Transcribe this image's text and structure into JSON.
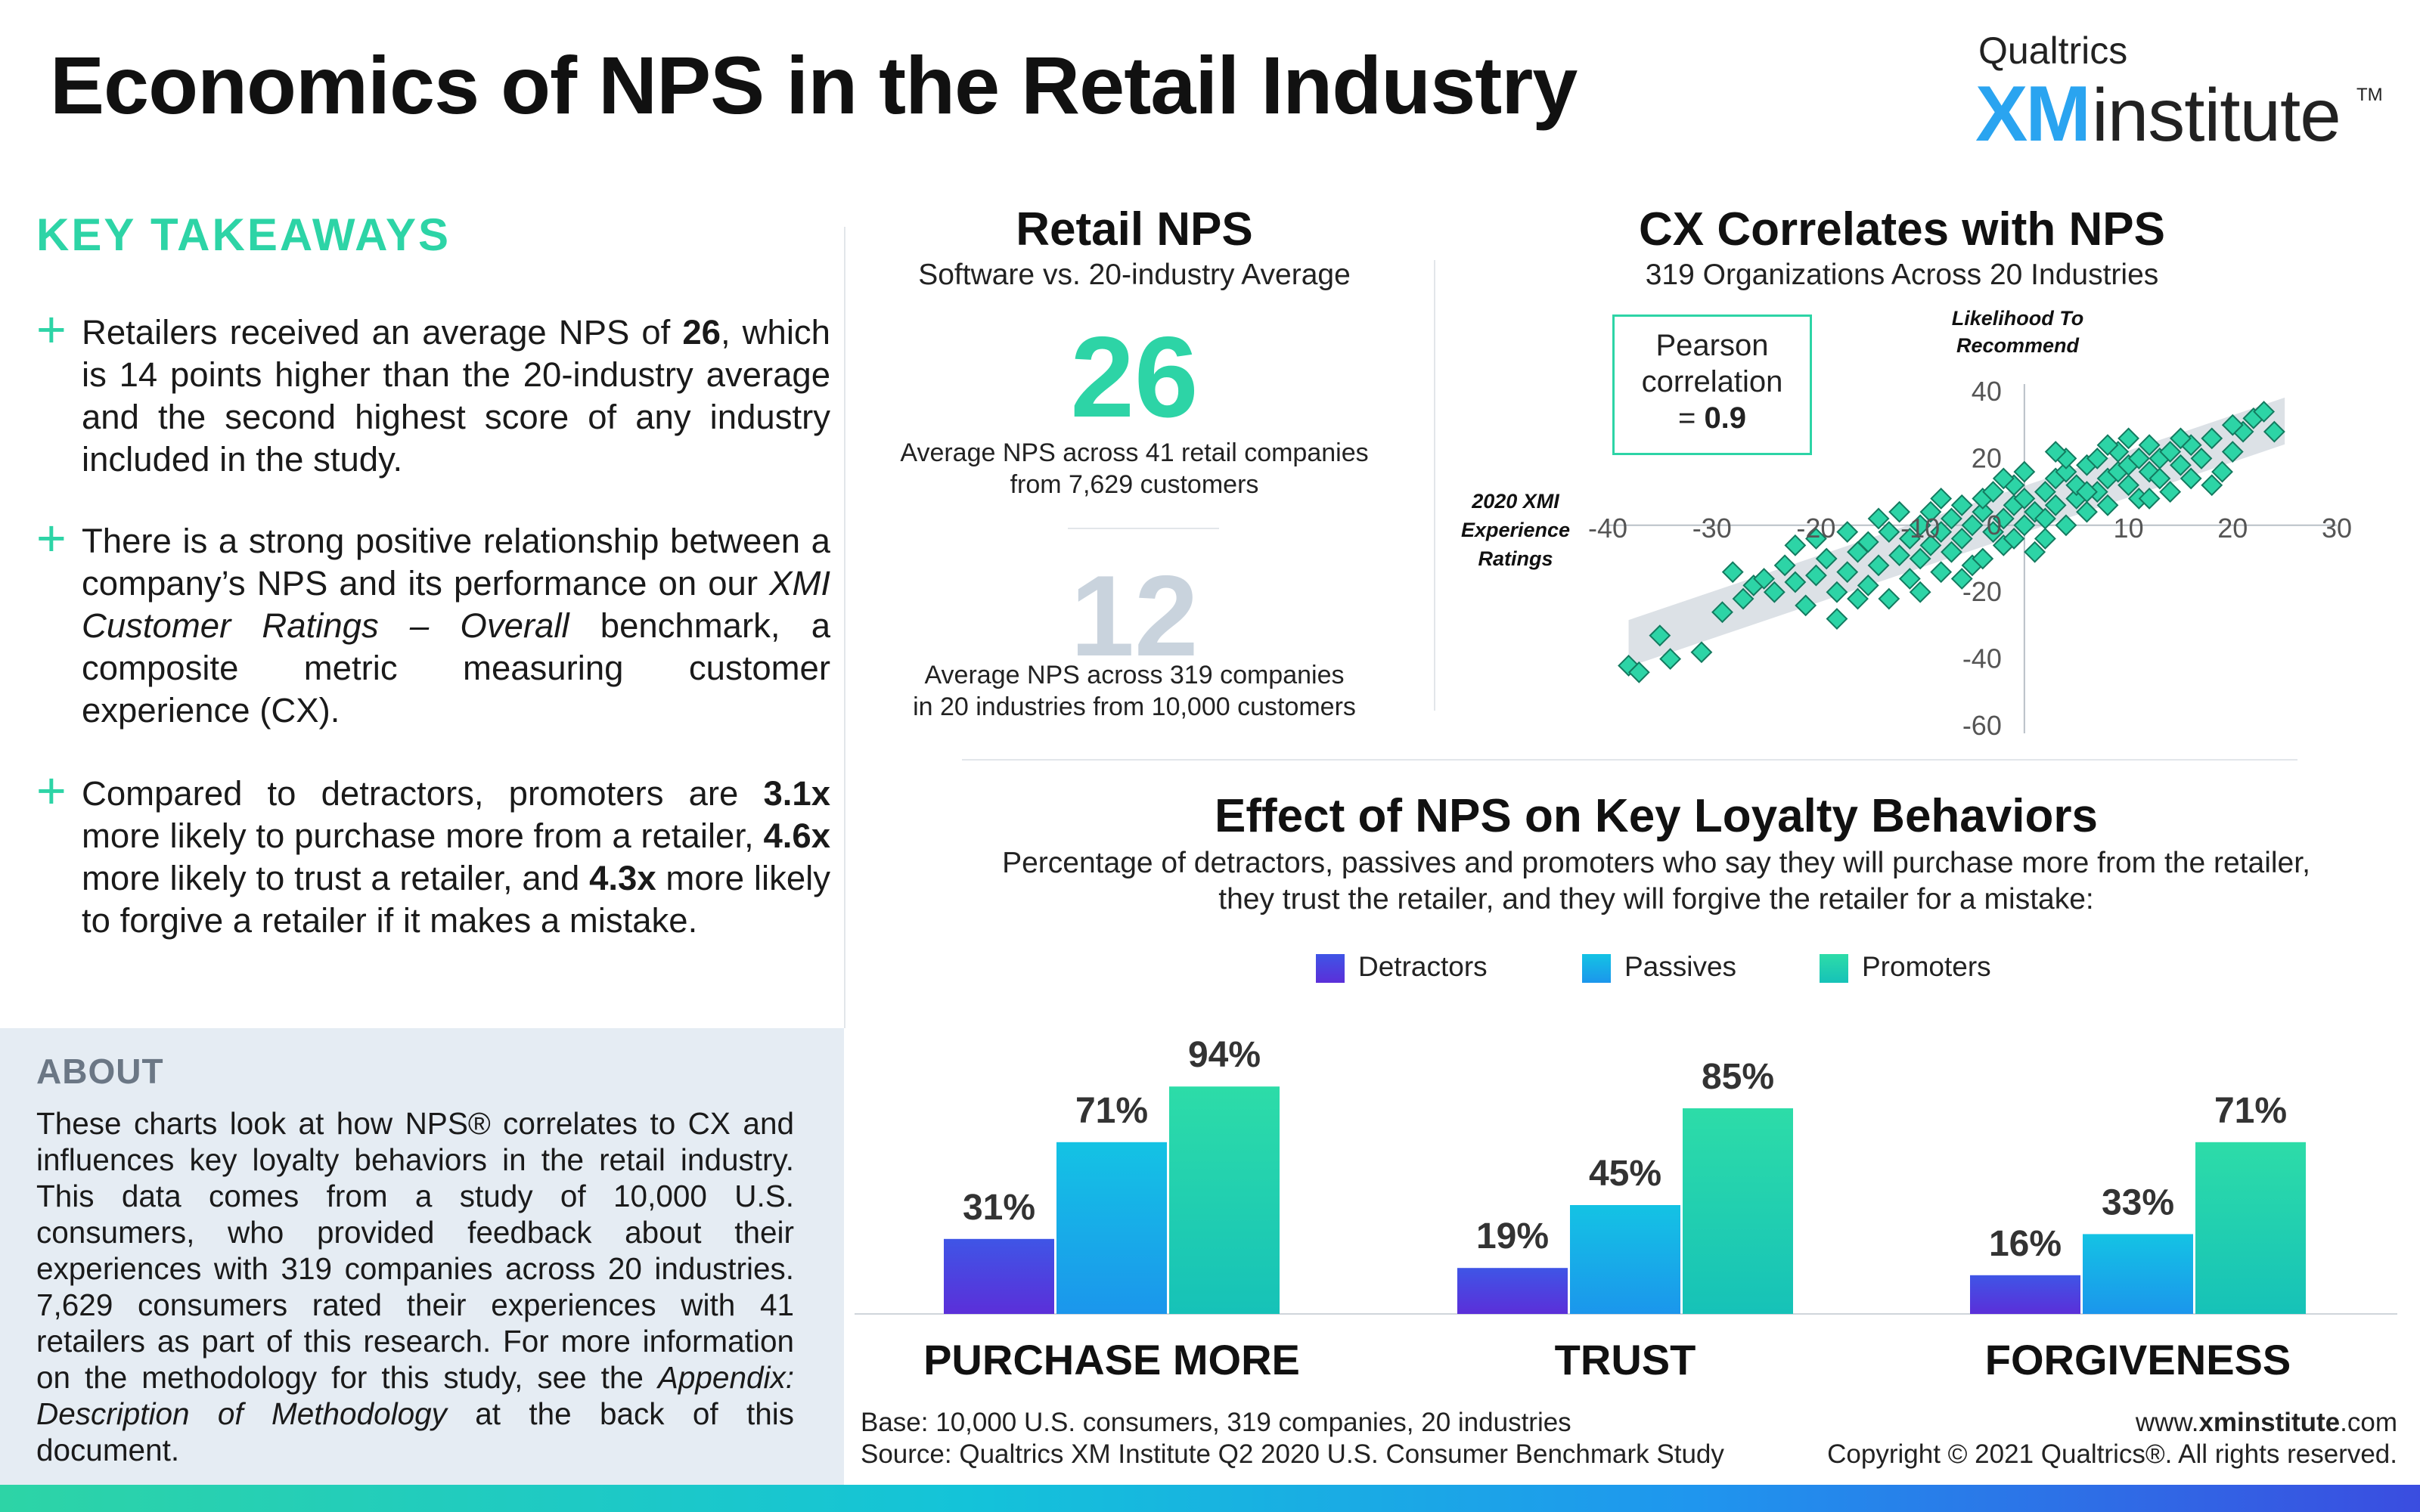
{
  "header": {
    "title": "Economics of NPS in the Retail Industry",
    "brand_company": "Qualtrics",
    "brand_xm": "XM",
    "brand_institute": "institute",
    "brand_tm": "TM"
  },
  "takeaways": {
    "title": "KEY TAKEAWAYS",
    "item1": {
      "a": "Retailers received an average NPS of ",
      "b": "26",
      "c": ", which is 14 points higher than the 20-industry average and the second highest score of any industry included in the study."
    },
    "item2": {
      "a": "There is a strong positive relationship between a company’s NPS and its performance on our ",
      "b": "XMI Customer Ratings – Overall",
      "c": " benchmark, a composite metric measuring customer experience (CX)."
    },
    "item3": {
      "a": "Compared to detractors, promoters are ",
      "b": "3.1x",
      "c": " more likely to purchase more from a retailer, ",
      "d": "4.6x",
      "e": " more likely to trust a retailer, and ",
      "f": "4.3x",
      "g": " more likely to forgive a retailer if it makes a mistake."
    }
  },
  "about": {
    "title": "ABOUT",
    "text_a": "These charts look at how NPS® correlates to CX and influences key loyalty behaviors in the retail industry. This data comes from a study of 10,000 U.S. consumers, who provided feedback about their experiences with 319 companies across 20 industries. 7,629 consumers rated their experiences with 41 retailers as part of this research. For more information on the methodology for this study, see the ",
    "text_b": "Appendix: Description of Methodology",
    "text_c": " at the back of this document."
  },
  "retail_nps": {
    "title": "Retail NPS",
    "subtitle": "Software vs. 20-industry Average",
    "value": "26",
    "caption_1": "Average NPS across 41 retail companies",
    "caption_2": "from 7,629 customers",
    "industry_value": "12",
    "industry_caption_1": "Average NPS across 319 companies",
    "industry_caption_2": "in 20 industries from 10,000 customers"
  },
  "cx_chart": {
    "title": "CX Correlates with NPS",
    "subtitle": "319 Organizations Across 20 Industries",
    "pearson_line1": "Pearson",
    "pearson_line2": "correlation",
    "pearson_eq": "= ",
    "pearson_value": "0.9"
  },
  "effect": {
    "title": "Effect of NPS on Key Loyalty Behaviors",
    "subtitle": "Percentage of detractors, passives and promoters who say they will purchase more from the retailer, they trust the retailer, and they will forgive the retailer for a mistake:"
  },
  "footer": {
    "base": "Base: 10,000 U.S. consumers, 319 companies, 20 industries",
    "source": "Source: Qualtrics XM Institute Q2 2020 U.S. Consumer Benchmark Study",
    "web_a": "www.",
    "web_b": "xminstitute",
    "web_c": ".com",
    "copyright": "Copyright © 2021 Qualtrics®. All rights reserved."
  },
  "colors": {
    "accent_green": "#2dd4a6",
    "detractors": "#4b3fe0",
    "passives": "#18b4ec",
    "promoters": "#2dd4a6",
    "muted_number": "#c9d3dd"
  },
  "chart_data": [
    {
      "type": "scatter",
      "title": "CX Correlates with NPS",
      "subtitle": "319 Organizations Across 20 Industries",
      "xlabel": "2020 XMI Experience Ratings",
      "ylabel": "Likelihood To Recommend",
      "xlim": [
        -40,
        30
      ],
      "ylim": [
        -60,
        40
      ],
      "x_ticks": [
        -40,
        -30,
        -20,
        -10,
        10,
        20,
        30
      ],
      "y_ticks": [
        40,
        20,
        0,
        -20,
        -40,
        -60
      ],
      "correlation": 0.9,
      "points_note": "319 organizations",
      "points": [
        [
          -38,
          -42
        ],
        [
          -37,
          -44
        ],
        [
          -35,
          -33
        ],
        [
          -34,
          -40
        ],
        [
          -31,
          -38
        ],
        [
          -28,
          -14
        ],
        [
          -26,
          -18
        ],
        [
          -25,
          -16
        ],
        [
          -24,
          -20
        ],
        [
          -23,
          -12
        ],
        [
          -22,
          -17
        ],
        [
          -21,
          -24
        ],
        [
          -20,
          -15
        ],
        [
          -19,
          -10
        ],
        [
          -18,
          -20
        ],
        [
          -17,
          -14
        ],
        [
          -16,
          -8
        ],
        [
          -15,
          -18
        ],
        [
          -15,
          -5
        ],
        [
          -14,
          -12
        ],
        [
          -13,
          -2
        ],
        [
          -13,
          -22
        ],
        [
          -12,
          -9
        ],
        [
          -11,
          -4
        ],
        [
          -11,
          -16
        ],
        [
          -10,
          0
        ],
        [
          -10,
          -10
        ],
        [
          -9,
          -6
        ],
        [
          -9,
          4
        ],
        [
          -8,
          -2
        ],
        [
          -8,
          -14
        ],
        [
          -7,
          2
        ],
        [
          -7,
          -8
        ],
        [
          -6,
          6
        ],
        [
          -6,
          -4
        ],
        [
          -5,
          -12
        ],
        [
          -5,
          0
        ],
        [
          -4,
          4
        ],
        [
          -4,
          8
        ],
        [
          -3,
          -2
        ],
        [
          -3,
          10
        ],
        [
          -2,
          2
        ],
        [
          -2,
          -6
        ],
        [
          -1,
          6
        ],
        [
          -1,
          12
        ],
        [
          0,
          0
        ],
        [
          0,
          8
        ],
        [
          1,
          4
        ],
        [
          1,
          -8
        ],
        [
          2,
          10
        ],
        [
          2,
          2
        ],
        [
          3,
          14
        ],
        [
          3,
          6
        ],
        [
          4,
          0
        ],
        [
          4,
          16
        ],
        [
          5,
          8
        ],
        [
          5,
          12
        ],
        [
          6,
          4
        ],
        [
          6,
          18
        ],
        [
          7,
          10
        ],
        [
          7,
          20
        ],
        [
          8,
          14
        ],
        [
          8,
          6
        ],
        [
          9,
          16
        ],
        [
          9,
          22
        ],
        [
          10,
          12
        ],
        [
          10,
          18
        ],
        [
          11,
          8
        ],
        [
          11,
          20
        ],
        [
          12,
          16
        ],
        [
          12,
          24
        ],
        [
          13,
          14
        ],
        [
          13,
          20
        ],
        [
          14,
          22
        ],
        [
          14,
          10
        ],
        [
          15,
          18
        ],
        [
          16,
          24
        ],
        [
          16,
          14
        ],
        [
          17,
          20
        ],
        [
          18,
          26
        ],
        [
          19,
          16
        ],
        [
          20,
          22
        ],
        [
          21,
          28
        ],
        [
          22,
          32
        ],
        [
          23,
          34
        ],
        [
          24,
          28
        ],
        [
          -27,
          -22
        ],
        [
          -29,
          -26
        ],
        [
          -20,
          -4
        ],
        [
          -18,
          -28
        ],
        [
          -16,
          -22
        ],
        [
          -12,
          4
        ],
        [
          -6,
          -16
        ],
        [
          -2,
          14
        ],
        [
          2,
          -4
        ],
        [
          6,
          10
        ],
        [
          -14,
          2
        ],
        [
          -10,
          -20
        ],
        [
          -4,
          -10
        ],
        [
          0,
          16
        ],
        [
          4,
          20
        ],
        [
          8,
          24
        ],
        [
          12,
          8
        ],
        [
          15,
          26
        ],
        [
          -22,
          -6
        ],
        [
          -17,
          -2
        ],
        [
          -8,
          8
        ],
        [
          -1,
          -4
        ],
        [
          3,
          22
        ],
        [
          10,
          26
        ],
        [
          18,
          12
        ],
        [
          20,
          30
        ]
      ],
      "trend_band": "linear fit with confidence band"
    },
    {
      "type": "bar",
      "title": "Effect of NPS on Key Loyalty Behaviors",
      "categories": [
        "PURCHASE MORE",
        "TRUST",
        "FORGIVENESS"
      ],
      "ylim": [
        0,
        100
      ],
      "series": [
        {
          "name": "Detractors",
          "values": [
            31,
            19,
            16
          ]
        },
        {
          "name": "Passives",
          "values": [
            71,
            45,
            33
          ]
        },
        {
          "name": "Promoters",
          "values": [
            94,
            85,
            71
          ]
        }
      ],
      "value_suffix": "%",
      "legend": "top"
    }
  ]
}
